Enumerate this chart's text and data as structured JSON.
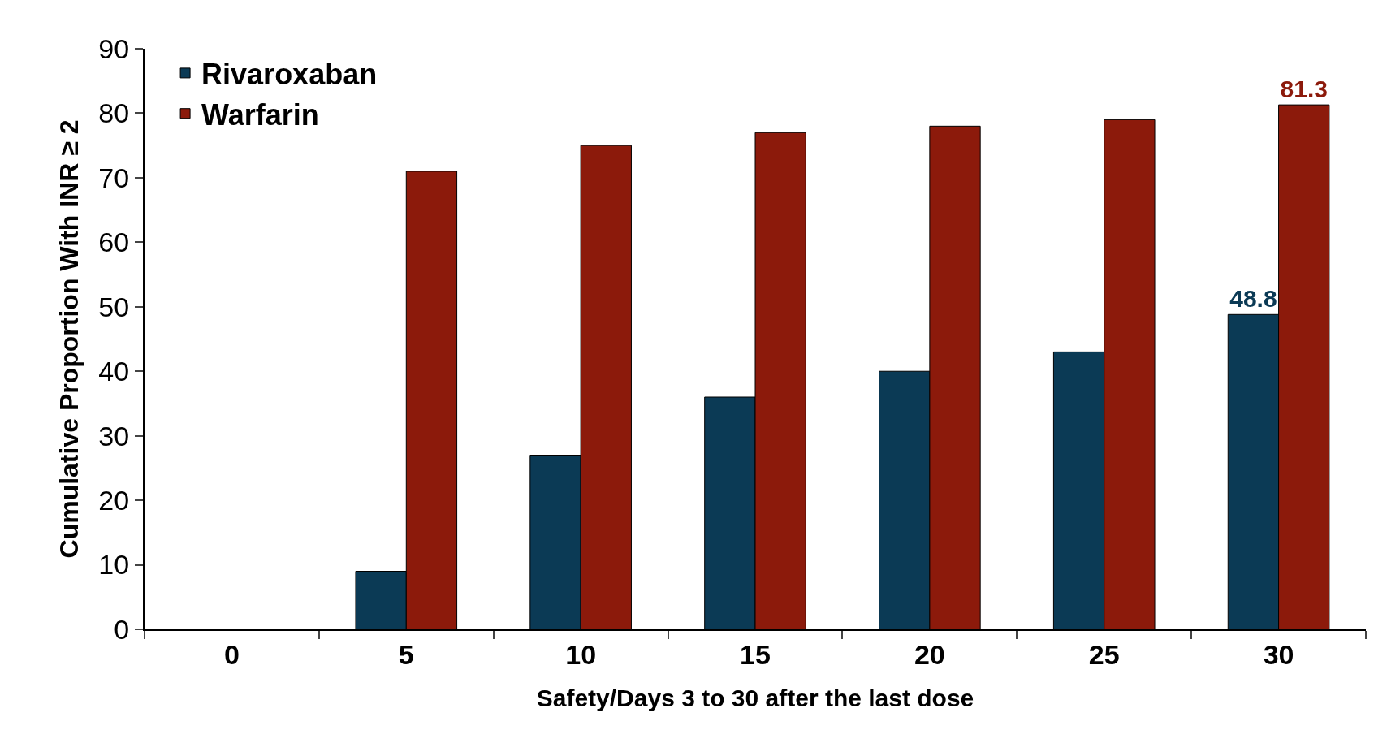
{
  "chart_data": {
    "type": "bar",
    "xlabel": "Safety/Days 3 to 30 after the last dose",
    "ylabel": "Cumulative Proportion With INR ≥ 2",
    "categories": [
      "0",
      "5",
      "10",
      "15",
      "20",
      "25",
      "30"
    ],
    "series": [
      {
        "name": "Rivaroxaban",
        "color": "#0b3a55",
        "values": [
          null,
          9,
          27,
          36,
          40,
          43,
          48.8
        ],
        "value_labels": [
          null,
          null,
          null,
          null,
          null,
          null,
          "48.8"
        ]
      },
      {
        "name": "Warfarin",
        "color": "#8c1a0b",
        "values": [
          null,
          71,
          75,
          77,
          78,
          79,
          81.3
        ],
        "value_labels": [
          null,
          null,
          null,
          null,
          null,
          null,
          "81.3"
        ]
      }
    ],
    "ylim": [
      0,
      90
    ],
    "yticks": [
      0,
      10,
      20,
      30,
      40,
      50,
      60,
      70,
      80,
      90
    ],
    "grid": false,
    "legend": "top left"
  }
}
